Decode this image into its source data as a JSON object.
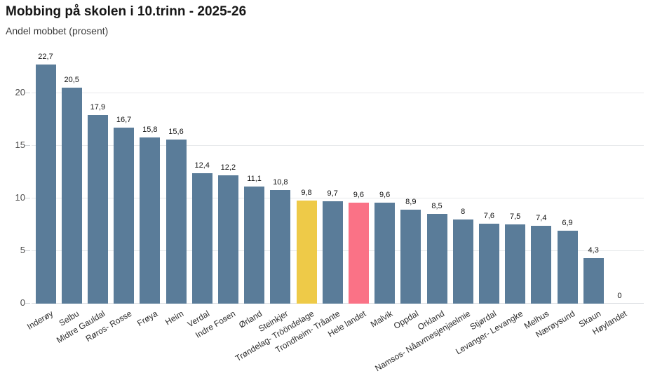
{
  "chart_data": {
    "type": "bar",
    "title": "Mobbing på skolen i 10.trinn - 2025-26",
    "subtitle": "Andel mobbet (prosent)",
    "xlabel": "",
    "ylabel": "",
    "ylim": [
      0,
      23.2
    ],
    "yticks": [
      0,
      5,
      10,
      15,
      20
    ],
    "grid": true,
    "legend_position": "none",
    "decimal_separator": ",",
    "categories": [
      "Inderøy",
      "Selbu",
      "Midtre Gauldal",
      "Røros- Rosse",
      "Frøya",
      "Heim",
      "Verdal",
      "Indre Fosen",
      "Ørland",
      "Steinkjer",
      "Trøndelag- Trööndelage",
      "Trondheim- Tråante",
      "Hele landet",
      "Malvik",
      "Oppdal",
      "Orkland",
      "Namsos- Nåavmesjenjaelmie",
      "Stjørdal",
      "Levanger- Levangke",
      "Melhus",
      "Nærøysund",
      "Skaun",
      "Høylandet"
    ],
    "values": [
      22.7,
      20.5,
      17.9,
      16.7,
      15.8,
      15.6,
      12.4,
      12.2,
      11.1,
      10.8,
      9.8,
      9.7,
      9.6,
      9.6,
      8.9,
      8.5,
      8,
      7.6,
      7.5,
      7.4,
      6.9,
      4.3,
      0
    ],
    "value_labels": [
      "22,7",
      "20,5",
      "17,9",
      "16,7",
      "15,8",
      "15,6",
      "12,4",
      "12,2",
      "11,1",
      "10,8",
      "9,8",
      "9,7",
      "9,6",
      "9,6",
      "8,9",
      "8,5",
      "8",
      "7,6",
      "7,5",
      "7,4",
      "6,9",
      "4,3",
      "0"
    ],
    "colors": {
      "bar_default": "#5a7c99",
      "bar_highlight_yellow": "#eeca48",
      "bar_highlight_pink": "#fa7286",
      "gridline": "#e8eaec",
      "value_label": "#111111",
      "axis_label": "#2e2e2e"
    },
    "highlights": [
      {
        "category": "Trøndelag- Trööndelage",
        "color_key": "bar_highlight_yellow"
      },
      {
        "category": "Hele landet",
        "color_key": "bar_highlight_pink"
      }
    ]
  }
}
